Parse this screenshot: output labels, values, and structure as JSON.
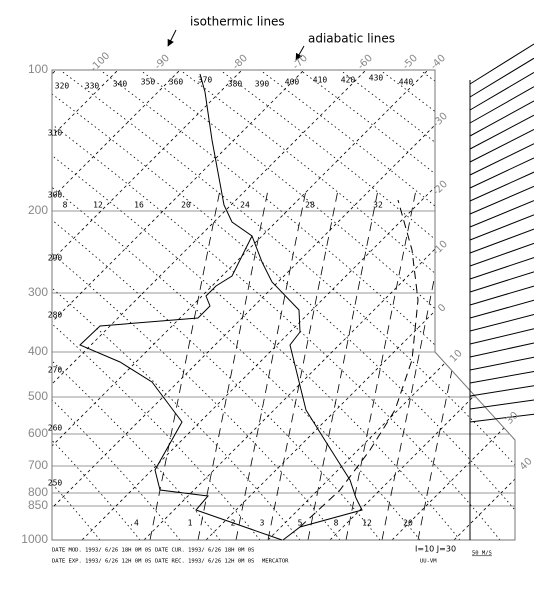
{
  "annotations": {
    "isotherms": "isothermic lines",
    "adiabats": "adiabatic lines"
  },
  "pressure_labels": [
    "100",
    "200",
    "300",
    "400",
    "500",
    "600",
    "700",
    "800",
    "850",
    "1000"
  ],
  "isotherm_labels": [
    "-100",
    "-90",
    "-80",
    "-70",
    "-60",
    "-50",
    "-40",
    "-30",
    "-20",
    "-10",
    "0",
    "10",
    "30",
    "40"
  ],
  "adiabat_labels": [
    "320",
    "330",
    "340",
    "350",
    "360",
    "370",
    "380",
    "390",
    "400",
    "410",
    "420",
    "430",
    "440",
    "310",
    "300",
    "290",
    "280",
    "270",
    "260",
    "250"
  ],
  "mixing_ratio_labels": {
    "top": [
      "8",
      "12",
      "16",
      "20",
      "24",
      "28",
      "32"
    ],
    "bottom": [
      ".4",
      "1",
      "2",
      "3",
      "5",
      "8",
      "12",
      "20"
    ]
  },
  "footer": {
    "date_mod": "DATE MOD. 1993/ 6/26 18H 0M 0S",
    "date_cur": "DATE CUR. 1993/ 6/26 18H 0M 0S",
    "date_exp": "DATE EXP. 1993/ 6/26 12H 0M 0S",
    "date_rec": "DATE REC. 1993/ 6/26 12H 0M 0S",
    "projection": "MERCATOR",
    "grid_point": "I=10 J=30",
    "component": "UU-VM",
    "wind_scale": "50 M/S"
  }
}
